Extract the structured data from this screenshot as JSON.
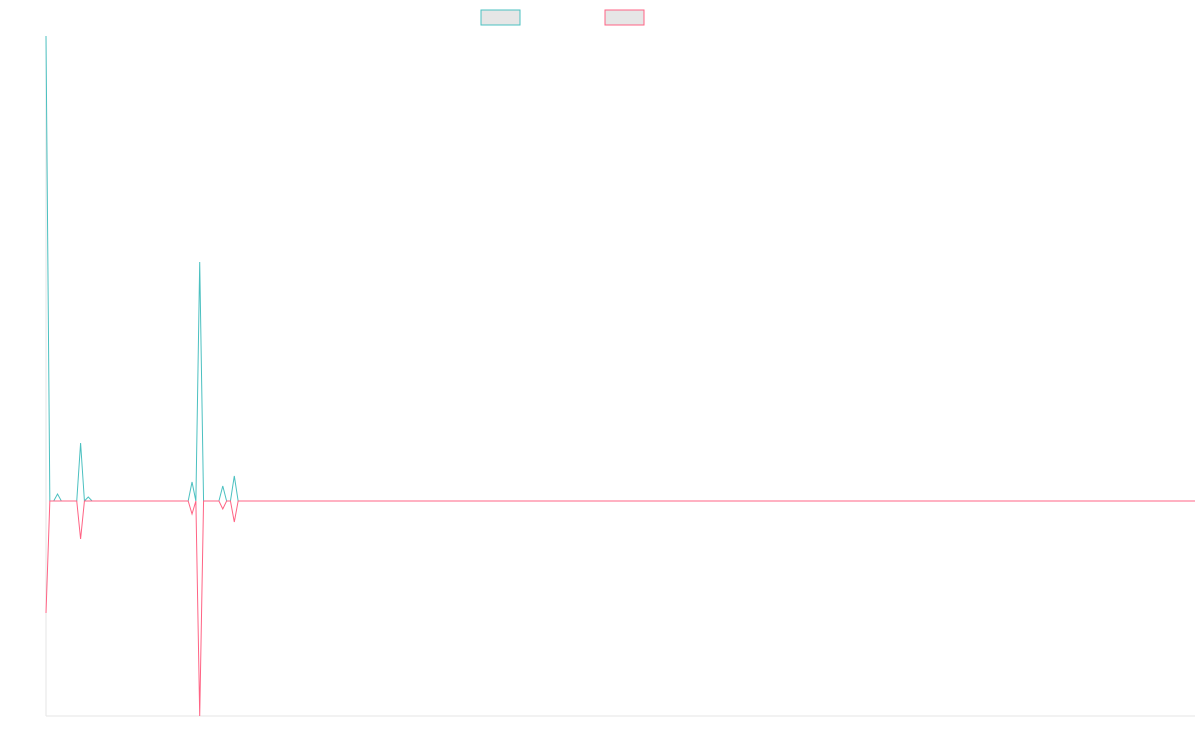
{
  "chart_data": {
    "type": "line",
    "x": [
      0,
      1,
      2,
      3,
      4,
      8,
      9,
      10,
      11,
      12,
      37,
      38,
      39,
      40,
      41,
      45,
      46,
      47,
      48,
      49,
      50,
      299
    ],
    "series": [
      {
        "color": "#4bc0c0",
        "values": [
          4.65,
          0,
          0,
          0.07,
          0,
          0,
          0.58,
          0,
          0.04,
          0,
          0,
          0.19,
          0,
          2.39,
          0,
          0,
          0.15,
          0,
          0,
          0.25,
          0,
          0
        ]
      },
      {
        "color": "#ff6384",
        "values": [
          -1.12,
          0,
          0,
          0,
          0,
          0,
          -0.38,
          0,
          0,
          0,
          0,
          -0.13,
          0,
          -2.15,
          0,
          0,
          -0.08,
          0,
          0,
          -0.21,
          0,
          0
        ]
      }
    ],
    "xlim": [
      0,
      299
    ],
    "ylim": [
      -2.15,
      4.65
    ]
  }
}
